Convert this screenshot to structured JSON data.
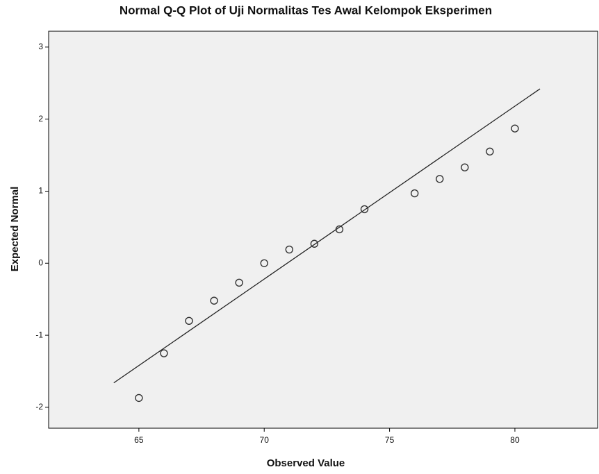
{
  "chart_data": {
    "type": "scatter",
    "title": "Normal Q-Q Plot of Uji Normalitas Tes Awal Kelompok Eksperimen",
    "xlabel": "Observed Value",
    "ylabel": "Expected Normal",
    "x": [
      65,
      66,
      67,
      68,
      69,
      70,
      71,
      72,
      73,
      74,
      76,
      77,
      78,
      79,
      80
    ],
    "values": [
      -1.87,
      -1.25,
      -0.8,
      -0.52,
      -0.27,
      0.0,
      0.19,
      0.27,
      0.47,
      0.75,
      0.97,
      1.17,
      1.33,
      1.55,
      1.87
    ],
    "reference_line": {
      "x": [
        64,
        81
      ],
      "y": [
        -1.66,
        2.42
      ]
    },
    "color": "#333333",
    "line_color": "#222222",
    "background": "#f0f0f0",
    "xlim": [
      61.4,
      83.3
    ],
    "ylim": [
      -2.29,
      3.22
    ],
    "xticks": [
      65,
      70,
      75,
      80
    ],
    "yticks": [
      -2,
      -1,
      0,
      1,
      2,
      3
    ]
  }
}
